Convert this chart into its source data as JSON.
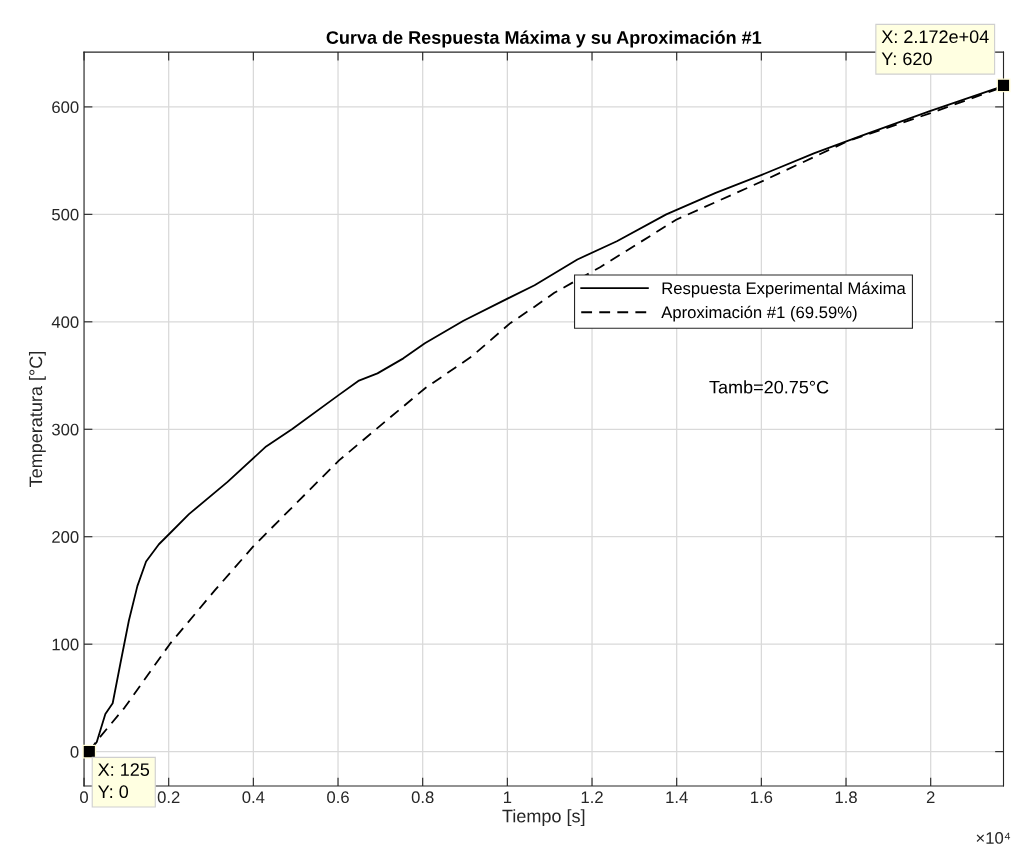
{
  "chart_data": {
    "type": "line",
    "title": "Curva de Respuesta Máxima y su Aproximación #1",
    "xlabel": "Tiempo [s]",
    "ylabel": "Temperatura [°C]",
    "xlim": [
      0,
      2.172
    ],
    "ylim": [
      -32,
      651
    ],
    "xticks": [
      0,
      0.2,
      0.4,
      0.6,
      0.8,
      1,
      1.2,
      1.4,
      1.6,
      1.8,
      2
    ],
    "yticks": [
      0,
      100,
      200,
      300,
      400,
      500,
      600
    ],
    "grid": true,
    "legend": "right",
    "series": [
      {
        "name": "Respuesta Experimental Máxima",
        "color": "#000000",
        "line_style": "solid",
        "x": [
          0.0125,
          0.0301,
          0.0504,
          0.0677,
          0.0859,
          0.106,
          0.126,
          0.1466,
          0.1769,
          0.2024,
          0.2479,
          0.3391,
          0.4302,
          0.4911,
          0.6022,
          0.6479,
          0.6932,
          0.7544,
          0.8052,
          0.8963,
          1.0076,
          1.0643,
          1.1654,
          1.2587,
          1.3754,
          1.4921,
          1.6088,
          1.7255,
          1.8422,
          1.9979,
          2.1536,
          2.172
        ],
        "values": [
          0,
          9,
          35,
          45,
          82,
          122,
          154,
          177,
          193,
          203,
          221,
          251,
          284,
          300,
          332,
          345,
          352,
          366,
          380,
          401,
          423,
          434,
          458,
          475,
          500,
          520,
          538,
          557,
          574,
          596,
          617,
          620
        ]
      },
      {
        "name": "Aproximación #1 (69.59%)",
        "color": "#000000",
        "line_style": "dashed",
        "x": [
          0.0125,
          0.0301,
          0.0959,
          0.2024,
          0.3088,
          0.3998,
          0.5111,
          0.6024,
          0.714,
          0.805,
          0.9166,
          1.0076,
          1.0643,
          1.111,
          1.22,
          1.3988,
          1.6088,
          1.8034,
          1.9979,
          2.1536,
          2.172
        ],
        "values": [
          0,
          10,
          41,
          100,
          150,
          191,
          235,
          271,
          308,
          338,
          368,
          399,
          414,
          427,
          451,
          495,
          532,
          568,
          594,
          616,
          620
        ]
      }
    ],
    "annotations": [
      {
        "text": "X: 125\nY: 0",
        "x": 0.0125,
        "y": 0
      },
      {
        "text": "X: 2.172e+04\nY: 620",
        "x": 2.172,
        "y": 620
      },
      "Tamb=20.75°C",
      "×10⁴"
    ]
  }
}
